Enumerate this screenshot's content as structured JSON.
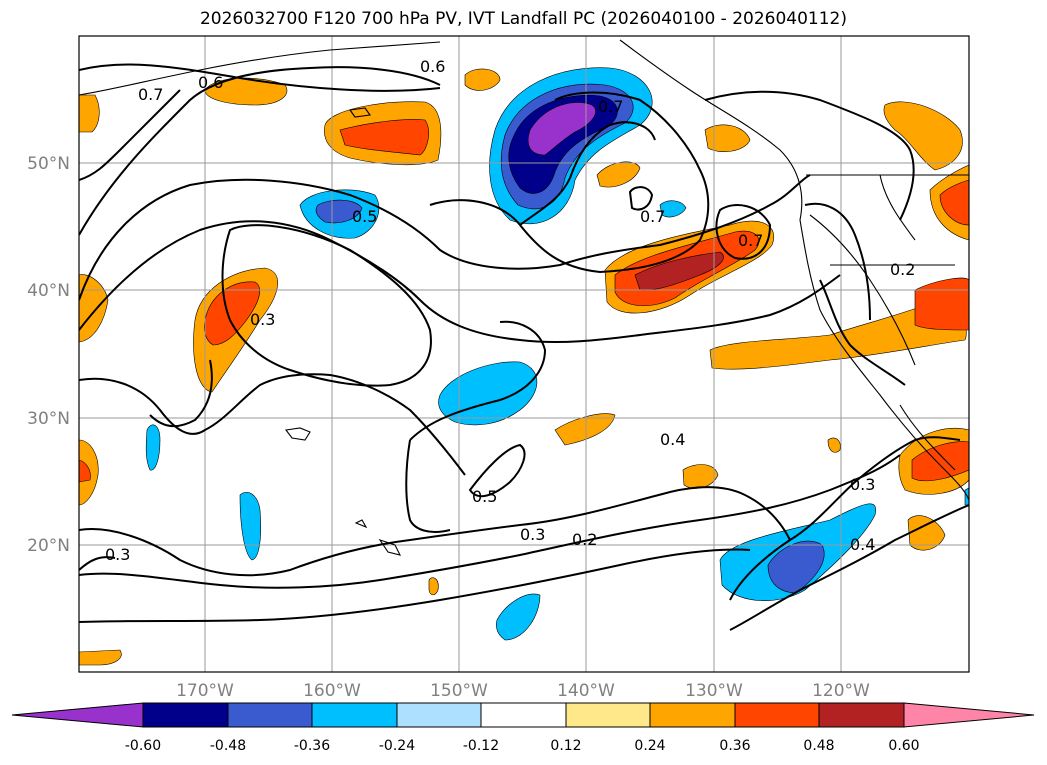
{
  "title": "2026032700 F120 700 hPa PV, IVT Landfall PC (2026040100 - 2026040112)",
  "lon_labels": [
    "170°W",
    "160°W",
    "150°W",
    "140°W",
    "130°W",
    "120°W"
  ],
  "lat_labels": [
    "50°N",
    "40°N",
    "30°N",
    "20°N"
  ],
  "colorbar": {
    "ticks": [
      "-0.60",
      "-0.48",
      "-0.36",
      "-0.24",
      "-0.12",
      "0.12",
      "0.24",
      "0.36",
      "0.48",
      "0.60"
    ],
    "colors": [
      "#9932CC",
      "#00008B",
      "#3A5BCF",
      "#00BFFF",
      "#ADDFFF",
      "#FFFFFF",
      "#FFE88A",
      "#FFA500",
      "#FF4500",
      "#B22222",
      "#FF85A8"
    ]
  },
  "contour_labels": [
    "0.6",
    "0.6",
    "0.7",
    "0.7",
    "0.5",
    "0.7",
    "0.7",
    "0.3",
    "0.2",
    "0.4",
    "0.3",
    "0.2",
    "0.5",
    "0.3",
    "0.4",
    "0.3"
  ]
}
